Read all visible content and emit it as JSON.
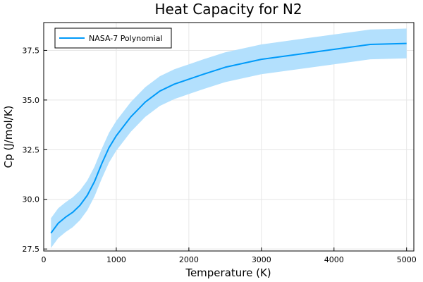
{
  "chart_data": {
    "type": "line",
    "title": "Heat Capacity for N2",
    "xlabel": "Temperature (K)",
    "ylabel": "Cp (J/mol/K)",
    "xlim": [
      0,
      5100
    ],
    "ylim": [
      27.4,
      38.9
    ],
    "xticks": [
      0,
      1000,
      2000,
      3000,
      4000,
      5000
    ],
    "xtick_labels": [
      "0",
      "1000",
      "2000",
      "3000",
      "4000",
      "5000"
    ],
    "yticks": [
      27.5,
      30.0,
      32.5,
      35.0,
      37.5
    ],
    "ytick_labels": [
      "27.5",
      "30.0",
      "32.5",
      "35.0",
      "37.5"
    ],
    "grid": true,
    "legend_position": "top-left",
    "colors": {
      "line": "#009af9",
      "band": "#b3e0fd"
    },
    "series": [
      {
        "name": "NASA-7 Polynomial",
        "band_halfwidth": 0.75,
        "x": [
          100,
          200,
          300,
          400,
          500,
          600,
          700,
          800,
          900,
          1000,
          1200,
          1400,
          1600,
          1800,
          2000,
          2200,
          2500,
          3000,
          3500,
          4000,
          4500,
          5000
        ],
        "y": [
          28.3,
          28.8,
          29.1,
          29.35,
          29.7,
          30.2,
          30.9,
          31.8,
          32.6,
          33.2,
          34.15,
          34.9,
          35.45,
          35.8,
          36.05,
          36.3,
          36.65,
          37.05,
          37.3,
          37.55,
          37.8,
          37.85
        ]
      }
    ]
  }
}
